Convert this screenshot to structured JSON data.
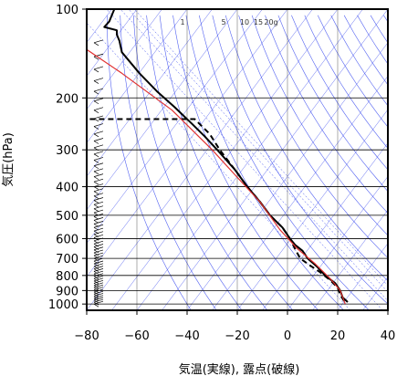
{
  "chart_data": {
    "type": "line",
    "xlabel": "気温(実線), 露点(破線)",
    "ylabel": "気圧(hPa)",
    "xlim": [
      -80,
      40
    ],
    "ylim": [
      1050,
      100
    ],
    "y_scale": "log",
    "x_ticks": [
      -80,
      -60,
      -40,
      -20,
      0,
      20,
      40
    ],
    "x_tick_labels": [
      "−80",
      "−60",
      "−40",
      "−20",
      "0",
      "20",
      "40"
    ],
    "y_ticks": [
      100,
      200,
      300,
      400,
      500,
      600,
      700,
      800,
      900,
      1000
    ],
    "y_tick_labels": [
      "100",
      "200",
      "300",
      "400",
      "500",
      "600",
      "700",
      "800",
      "900",
      "1000"
    ],
    "mixing_ratio_labels": [
      "1",
      "5",
      "10",
      "15",
      "20g"
    ],
    "mixing_ratio_values": [
      1,
      5,
      10,
      15,
      20
    ],
    "grid": true,
    "colors": {
      "temperature": "#000000",
      "dewpoint": "#000000",
      "parcel": "#e03030",
      "guide_lines": "#3344ee",
      "grid": "#000000"
    },
    "series": [
      {
        "id": "temperature",
        "style": "solid",
        "points": [
          [
            -69,
            100
          ],
          [
            -71,
            110
          ],
          [
            -73,
            115
          ],
          [
            -68,
            118
          ],
          [
            -68,
            122
          ],
          [
            -67,
            128
          ],
          [
            -66,
            140
          ],
          [
            -59,
            165
          ],
          [
            -52,
            190
          ],
          [
            -45,
            215
          ],
          [
            -38,
            245
          ],
          [
            -33,
            270
          ],
          [
            -28,
            300
          ],
          [
            -21,
            350
          ],
          [
            -16,
            400
          ],
          [
            -11,
            450
          ],
          [
            -7,
            500
          ],
          [
            -2,
            550
          ],
          [
            1,
            600
          ],
          [
            3,
            630
          ],
          [
            6,
            660
          ],
          [
            8,
            700
          ],
          [
            12,
            750
          ],
          [
            15,
            800
          ],
          [
            19,
            850
          ],
          [
            21,
            900
          ],
          [
            22,
            950
          ],
          [
            24,
            985
          ]
        ]
      },
      {
        "id": "dewpoint",
        "style": "dashed",
        "points": [
          [
            -92,
            230
          ],
          [
            -92,
            236
          ],
          [
            -37,
            236
          ],
          [
            -31,
            265
          ],
          [
            -27,
            300
          ],
          [
            -21,
            350
          ],
          [
            -16,
            400
          ],
          [
            -11,
            450
          ],
          [
            -7,
            500
          ],
          [
            -2,
            550
          ],
          [
            1,
            600
          ],
          [
            3,
            650
          ],
          [
            5,
            700
          ],
          [
            9,
            740
          ],
          [
            13,
            780
          ],
          [
            17,
            830
          ],
          [
            20,
            880
          ],
          [
            21,
            930
          ],
          [
            22,
            960
          ],
          [
            23,
            990
          ]
        ]
      },
      {
        "id": "parcel",
        "style": "solid",
        "points": [
          [
            -84,
            130
          ],
          [
            -66,
            165
          ],
          [
            -46,
            220
          ],
          [
            -30,
            300
          ],
          [
            -19,
            380
          ],
          [
            -11,
            450
          ],
          [
            -3,
            560
          ],
          [
            4,
            650
          ],
          [
            11,
            730
          ],
          [
            17,
            820
          ],
          [
            21,
            900
          ],
          [
            23,
            1000
          ]
        ]
      }
    ]
  }
}
